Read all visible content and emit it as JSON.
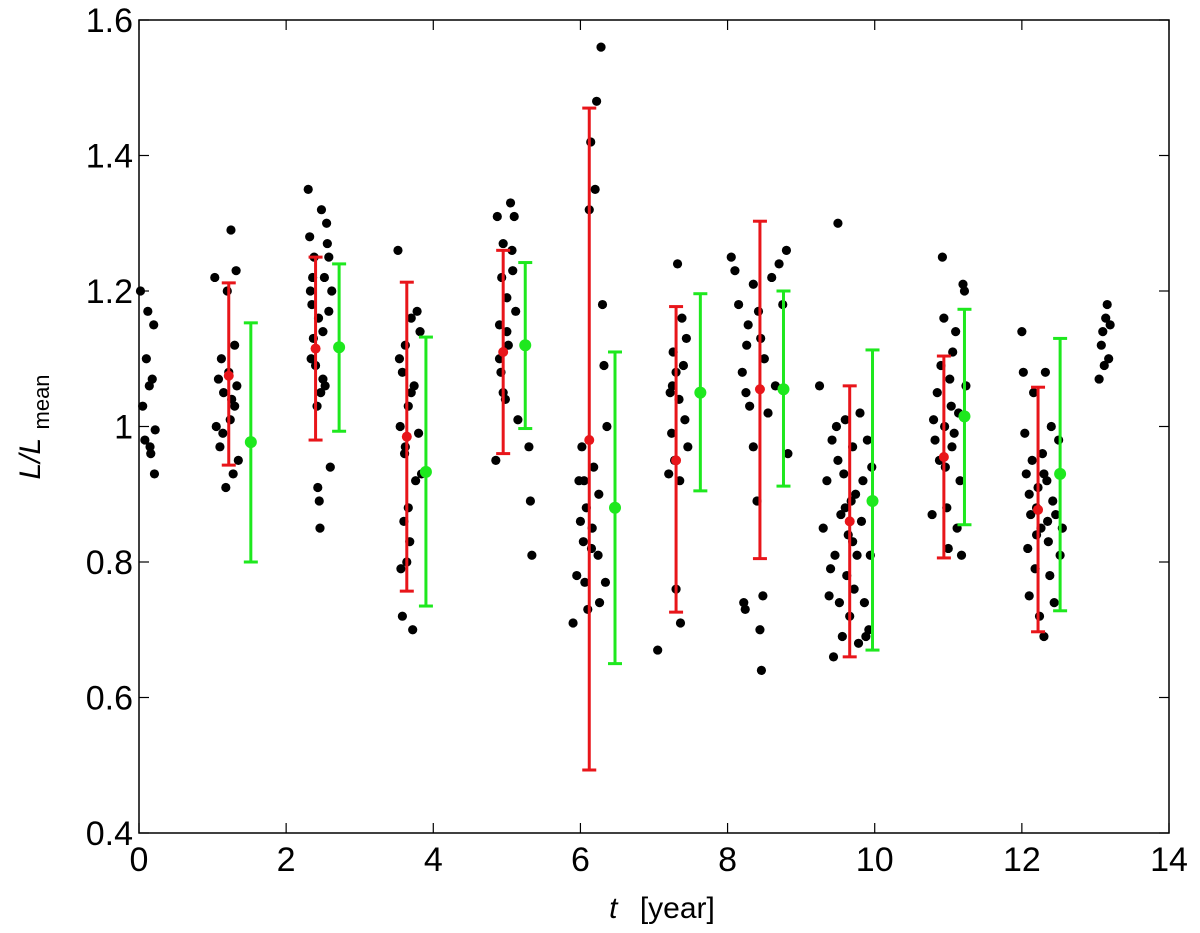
{
  "chart_data": {
    "type": "scatter",
    "title": "",
    "xlabel": {
      "var": "t",
      "unit": "[year]"
    },
    "ylabel": {
      "main": "L/L",
      "sub": "mean"
    },
    "xlim": [
      0,
      14
    ],
    "ylim": [
      0.4,
      1.6
    ],
    "xticks": [
      "0",
      "2",
      "4",
      "6",
      "8",
      "10",
      "12",
      "14"
    ],
    "yticks": [
      "0.4",
      "0.6",
      "0.8",
      "1",
      "1.2",
      "1.4",
      "1.6"
    ],
    "colors": {
      "points": "#000000",
      "red_errorbars": "#e8151a",
      "green_errorbars": "#1ee81e",
      "axes": "#000000"
    },
    "scatter_points": [
      [
        0.02,
        1.2
      ],
      [
        0.05,
        1.03
      ],
      [
        0.08,
        0.98
      ],
      [
        0.12,
        1.17
      ],
      [
        0.14,
        1.06
      ],
      [
        0.16,
        0.96
      ],
      [
        0.18,
        1.07
      ],
      [
        0.2,
        1.15
      ],
      [
        0.21,
        0.93
      ],
      [
        0.22,
        0.995
      ],
      [
        0.1,
        1.1
      ],
      [
        0.15,
        0.97
      ],
      [
        1.03,
        1.22
      ],
      [
        1.05,
        1.0
      ],
      [
        1.08,
        1.07
      ],
      [
        1.1,
        0.97
      ],
      [
        1.12,
        1.1
      ],
      [
        1.15,
        1.05
      ],
      [
        1.18,
        0.91
      ],
      [
        1.2,
        1.2
      ],
      [
        1.22,
        1.08
      ],
      [
        1.25,
        1.29
      ],
      [
        1.26,
        1.04
      ],
      [
        1.28,
        0.93
      ],
      [
        1.3,
        1.12
      ],
      [
        1.32,
        1.23
      ],
      [
        1.33,
        1.06
      ],
      [
        1.35,
        0.95
      ],
      [
        1.14,
        0.99
      ],
      [
        1.24,
        1.01
      ],
      [
        1.3,
        1.03
      ],
      [
        2.3,
        1.35
      ],
      [
        2.32,
        1.28
      ],
      [
        2.33,
        1.2
      ],
      [
        2.35,
        1.18
      ],
      [
        2.37,
        1.13
      ],
      [
        2.38,
        1.25
      ],
      [
        2.4,
        1.09
      ],
      [
        2.42,
        1.03
      ],
      [
        2.43,
        0.91
      ],
      [
        2.45,
        0.89
      ],
      [
        2.46,
        0.85
      ],
      [
        2.48,
        1.32
      ],
      [
        2.5,
        1.14
      ],
      [
        2.52,
        1.22
      ],
      [
        2.53,
        1.06
      ],
      [
        2.55,
        1.3
      ],
      [
        2.56,
        1.27
      ],
      [
        2.58,
        1.17
      ],
      [
        2.6,
        0.94
      ],
      [
        2.62,
        1.2
      ],
      [
        2.34,
        1.1
      ],
      [
        2.44,
        1.16
      ],
      [
        2.5,
        1.07
      ],
      [
        2.36,
        1.22
      ],
      [
        2.47,
        1.05
      ],
      [
        2.58,
        1.25
      ],
      [
        3.52,
        1.26
      ],
      [
        3.54,
        1.1
      ],
      [
        3.55,
        1.0
      ],
      [
        3.56,
        0.79
      ],
      [
        3.58,
        0.72
      ],
      [
        3.6,
        0.86
      ],
      [
        3.61,
        0.96
      ],
      [
        3.62,
        1.12
      ],
      [
        3.64,
        0.8
      ],
      [
        3.66,
        1.03
      ],
      [
        3.68,
        0.83
      ],
      [
        3.7,
        1.16
      ],
      [
        3.72,
        0.7
      ],
      [
        3.74,
        1.06
      ],
      [
        3.76,
        0.92
      ],
      [
        3.78,
        1.17
      ],
      [
        3.8,
        0.99
      ],
      [
        3.82,
        1.14
      ],
      [
        3.84,
        0.93
      ],
      [
        3.58,
        1.08
      ],
      [
        3.66,
        0.88
      ],
      [
        3.7,
        1.05
      ],
      [
        3.62,
        0.97
      ],
      [
        4.85,
        0.95
      ],
      [
        4.87,
        1.31
      ],
      [
        4.9,
        1.15
      ],
      [
        4.92,
        1.08
      ],
      [
        4.93,
        1.22
      ],
      [
        4.95,
        1.27
      ],
      [
        4.98,
        1.04
      ],
      [
        5.0,
        1.19
      ],
      [
        5.02,
        1.12
      ],
      [
        5.05,
        1.33
      ],
      [
        5.07,
        1.26
      ],
      [
        5.1,
        1.31
      ],
      [
        5.12,
        1.17
      ],
      [
        5.15,
        1.01
      ],
      [
        5.3,
        0.97
      ],
      [
        5.32,
        0.89
      ],
      [
        5.34,
        0.81
      ],
      [
        4.9,
        1.1
      ],
      [
        5.0,
        1.14
      ],
      [
        4.95,
        1.05
      ],
      [
        5.08,
        1.23
      ],
      [
        5.9,
        0.71
      ],
      [
        5.95,
        0.78
      ],
      [
        5.98,
        0.92
      ],
      [
        6.0,
        0.86
      ],
      [
        6.02,
        0.97
      ],
      [
        6.04,
        0.83
      ],
      [
        6.06,
        0.77
      ],
      [
        6.08,
        0.88
      ],
      [
        6.1,
        0.73
      ],
      [
        6.12,
        1.32
      ],
      [
        6.14,
        1.42
      ],
      [
        6.16,
        0.85
      ],
      [
        6.18,
        0.94
      ],
      [
        6.2,
        1.35
      ],
      [
        6.22,
        1.48
      ],
      [
        6.24,
        0.81
      ],
      [
        6.26,
        0.74
      ],
      [
        6.28,
        1.56
      ],
      [
        6.3,
        1.18
      ],
      [
        6.32,
        1.09
      ],
      [
        6.34,
        0.77
      ],
      [
        6.36,
        1.0
      ],
      [
        6.05,
        0.92
      ],
      [
        6.15,
        0.82
      ],
      [
        6.25,
        0.9
      ],
      [
        7.05,
        0.67
      ],
      [
        7.2,
        0.93
      ],
      [
        7.22,
        1.05
      ],
      [
        7.24,
        0.99
      ],
      [
        7.26,
        1.11
      ],
      [
        7.28,
        0.95
      ],
      [
        7.3,
        0.76
      ],
      [
        7.32,
        1.24
      ],
      [
        7.34,
        1.04
      ],
      [
        7.36,
        0.71
      ],
      [
        7.38,
        1.16
      ],
      [
        7.4,
        1.09
      ],
      [
        7.42,
        1.01
      ],
      [
        7.44,
        1.13
      ],
      [
        7.46,
        0.97
      ],
      [
        7.25,
        1.06
      ],
      [
        7.35,
        0.92
      ],
      [
        7.3,
        1.08
      ],
      [
        8.05,
        1.25
      ],
      [
        8.1,
        1.23
      ],
      [
        8.15,
        1.18
      ],
      [
        8.2,
        1.08
      ],
      [
        8.22,
        0.74
      ],
      [
        8.24,
        0.73
      ],
      [
        8.26,
        1.12
      ],
      [
        8.28,
        1.15
      ],
      [
        8.3,
        1.03
      ],
      [
        8.35,
        1.21
      ],
      [
        8.4,
        0.89
      ],
      [
        8.42,
        1.17
      ],
      [
        8.44,
        0.7
      ],
      [
        8.46,
        0.64
      ],
      [
        8.48,
        0.75
      ],
      [
        8.5,
        1.1
      ],
      [
        8.55,
        1.02
      ],
      [
        8.6,
        1.22
      ],
      [
        8.65,
        1.06
      ],
      [
        8.7,
        1.24
      ],
      [
        8.75,
        1.18
      ],
      [
        8.8,
        1.26
      ],
      [
        8.82,
        0.96
      ],
      [
        8.25,
        1.05
      ],
      [
        8.35,
        0.97
      ],
      [
        8.45,
        1.13
      ],
      [
        9.25,
        1.06
      ],
      [
        9.3,
        0.85
      ],
      [
        9.35,
        0.92
      ],
      [
        9.38,
        0.75
      ],
      [
        9.4,
        0.79
      ],
      [
        9.42,
        0.98
      ],
      [
        9.44,
        0.66
      ],
      [
        9.46,
        0.81
      ],
      [
        9.48,
        1.0
      ],
      [
        9.5,
        1.3
      ],
      [
        9.52,
        0.74
      ],
      [
        9.54,
        0.87
      ],
      [
        9.56,
        0.69
      ],
      [
        9.58,
        0.93
      ],
      [
        9.6,
        1.01
      ],
      [
        9.62,
        0.78
      ],
      [
        9.64,
        0.84
      ],
      [
        9.66,
        0.72
      ],
      [
        9.68,
        0.89
      ],
      [
        9.7,
        0.97
      ],
      [
        9.72,
        0.76
      ],
      [
        9.74,
        0.9
      ],
      [
        9.76,
        0.81
      ],
      [
        9.78,
        0.68
      ],
      [
        9.8,
        1.02
      ],
      [
        9.82,
        0.86
      ],
      [
        9.84,
        0.92
      ],
      [
        9.86,
        0.74
      ],
      [
        9.88,
        0.69
      ],
      [
        9.9,
        0.98
      ],
      [
        9.92,
        0.7
      ],
      [
        9.94,
        0.81
      ],
      [
        9.96,
        0.94
      ],
      [
        9.5,
        0.95
      ],
      [
        9.6,
        0.88
      ],
      [
        9.7,
        0.83
      ],
      [
        10.78,
        0.87
      ],
      [
        10.8,
        1.01
      ],
      [
        10.82,
        0.98
      ],
      [
        10.85,
        1.05
      ],
      [
        10.88,
        0.95
      ],
      [
        10.9,
        1.09
      ],
      [
        10.92,
        1.25
      ],
      [
        10.94,
        1.16
      ],
      [
        10.96,
        0.94
      ],
      [
        10.98,
        0.88
      ],
      [
        11.0,
        0.82
      ],
      [
        11.02,
        1.07
      ],
      [
        11.04,
        1.03
      ],
      [
        11.06,
        1.11
      ],
      [
        11.08,
        0.99
      ],
      [
        11.1,
        1.14
      ],
      [
        11.12,
        0.85
      ],
      [
        11.14,
        1.02
      ],
      [
        11.16,
        0.92
      ],
      [
        11.18,
        0.81
      ],
      [
        11.2,
        1.21
      ],
      [
        11.22,
        1.2
      ],
      [
        11.24,
        1.06
      ],
      [
        10.95,
        1.0
      ],
      [
        11.05,
        0.97
      ],
      [
        12.0,
        1.14
      ],
      [
        12.02,
        1.08
      ],
      [
        12.04,
        0.99
      ],
      [
        12.06,
        0.93
      ],
      [
        12.08,
        0.82
      ],
      [
        12.1,
        0.75
      ],
      [
        12.12,
        0.87
      ],
      [
        12.14,
        0.95
      ],
      [
        12.16,
        1.05
      ],
      [
        12.18,
        0.79
      ],
      [
        12.2,
        0.88
      ],
      [
        12.22,
        0.91
      ],
      [
        12.24,
        0.72
      ],
      [
        12.26,
        0.85
      ],
      [
        12.28,
        0.96
      ],
      [
        12.3,
        0.69
      ],
      [
        12.32,
        1.08
      ],
      [
        12.34,
        0.92
      ],
      [
        12.36,
        0.83
      ],
      [
        12.38,
        0.78
      ],
      [
        12.4,
        1.0
      ],
      [
        12.42,
        0.89
      ],
      [
        12.44,
        0.74
      ],
      [
        12.46,
        0.87
      ],
      [
        12.5,
        0.98
      ],
      [
        12.52,
        0.81
      ],
      [
        12.55,
        0.85
      ],
      [
        12.1,
        0.9
      ],
      [
        12.2,
        0.84
      ],
      [
        12.3,
        0.93
      ],
      [
        12.35,
        0.86
      ],
      [
        13.05,
        1.07
      ],
      [
        13.08,
        1.12
      ],
      [
        13.1,
        1.14
      ],
      [
        13.12,
        1.09
      ],
      [
        13.14,
        1.16
      ],
      [
        13.16,
        1.18
      ],
      [
        13.18,
        1.1
      ],
      [
        13.2,
        1.15
      ]
    ],
    "series": [
      {
        "marker": "red",
        "x": [
          1.22,
          2.4,
          3.64,
          4.95,
          6.12,
          7.3,
          8.44,
          9.66,
          10.94,
          12.22
        ],
        "y": [
          1.075,
          1.115,
          0.985,
          1.11,
          0.98,
          0.95,
          1.055,
          0.86,
          0.955,
          0.877
        ],
        "lower": [
          0.943,
          0.98,
          0.757,
          0.96,
          0.493,
          0.726,
          0.805,
          0.66,
          0.806,
          0.697
        ],
        "upper": [
          1.212,
          1.25,
          1.213,
          1.26,
          1.47,
          1.177,
          1.303,
          1.06,
          1.104,
          1.058
        ]
      },
      {
        "marker": "green",
        "x": [
          1.52,
          2.72,
          3.9,
          5.25,
          6.47,
          7.63,
          8.76,
          9.97,
          11.22,
          12.52
        ],
        "y": [
          0.977,
          1.117,
          0.933,
          1.12,
          0.88,
          1.05,
          1.055,
          0.89,
          1.015,
          0.93
        ],
        "lower": [
          0.8,
          0.993,
          0.735,
          0.997,
          0.65,
          0.905,
          0.912,
          0.67,
          0.855,
          0.728
        ],
        "upper": [
          1.153,
          1.24,
          1.132,
          1.242,
          1.11,
          1.196,
          1.2,
          1.113,
          1.173,
          1.13
        ]
      }
    ]
  }
}
